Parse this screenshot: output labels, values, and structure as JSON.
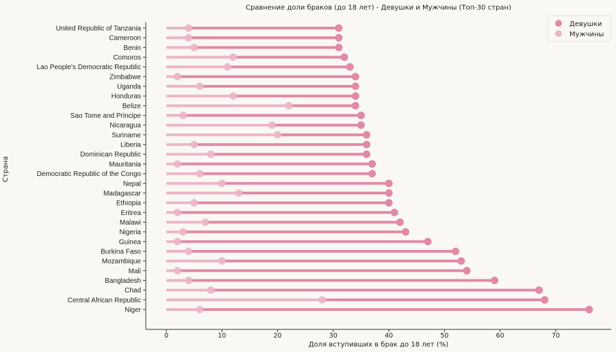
{
  "chart_data": {
    "type": "dumbbell",
    "title": "Сравнение доли браков (до 18 лет) - Девушки и Мужчины (Топ-30 стран)",
    "xlabel": "Доля вступивших в брак до 18 лет (%)",
    "ylabel": "Страна",
    "xlim": [
      -3.7,
      79.5
    ],
    "xticks": [
      0,
      10,
      20,
      30,
      40,
      50,
      60,
      70
    ],
    "grid": false,
    "legend_position": "top-right",
    "categories": [
      "United Republic of Tanzania",
      "Cameroon",
      "Benin",
      "Comoros",
      "Lao People's Democratic Republic",
      "Zimbabwe",
      "Uganda",
      "Honduras",
      "Belize",
      "Sao Tome and Principe",
      "Nicaragua",
      "Suriname",
      "Liberia",
      "Dominican Republic",
      "Mauritania",
      "Democratic Republic of the Congo",
      "Nepal",
      "Madagascar",
      "Ethiopia",
      "Eritrea",
      "Malawi",
      "Nigeria",
      "Guinea",
      "Burkina Faso",
      "Mozambique",
      "Mali",
      "Bangladesh",
      "Chad",
      "Central African Republic",
      "Niger"
    ],
    "series": [
      {
        "name": "Девушки",
        "color": "#e08aa7",
        "values": [
          31,
          31,
          31,
          32,
          33,
          34,
          34,
          34,
          34,
          35,
          35,
          36,
          36,
          36,
          37,
          37,
          40,
          40,
          40,
          41,
          42,
          43,
          47,
          52,
          53,
          54,
          59,
          67,
          68,
          76
        ]
      },
      {
        "name": "Мужчины",
        "color": "#ebb6c8",
        "values": [
          4,
          4,
          5,
          12,
          11,
          2,
          6,
          12,
          22,
          3,
          19,
          20,
          5,
          8,
          2,
          6,
          10,
          13,
          5,
          2,
          7,
          3,
          2,
          4,
          10,
          2,
          4,
          8,
          28,
          6
        ]
      }
    ]
  }
}
